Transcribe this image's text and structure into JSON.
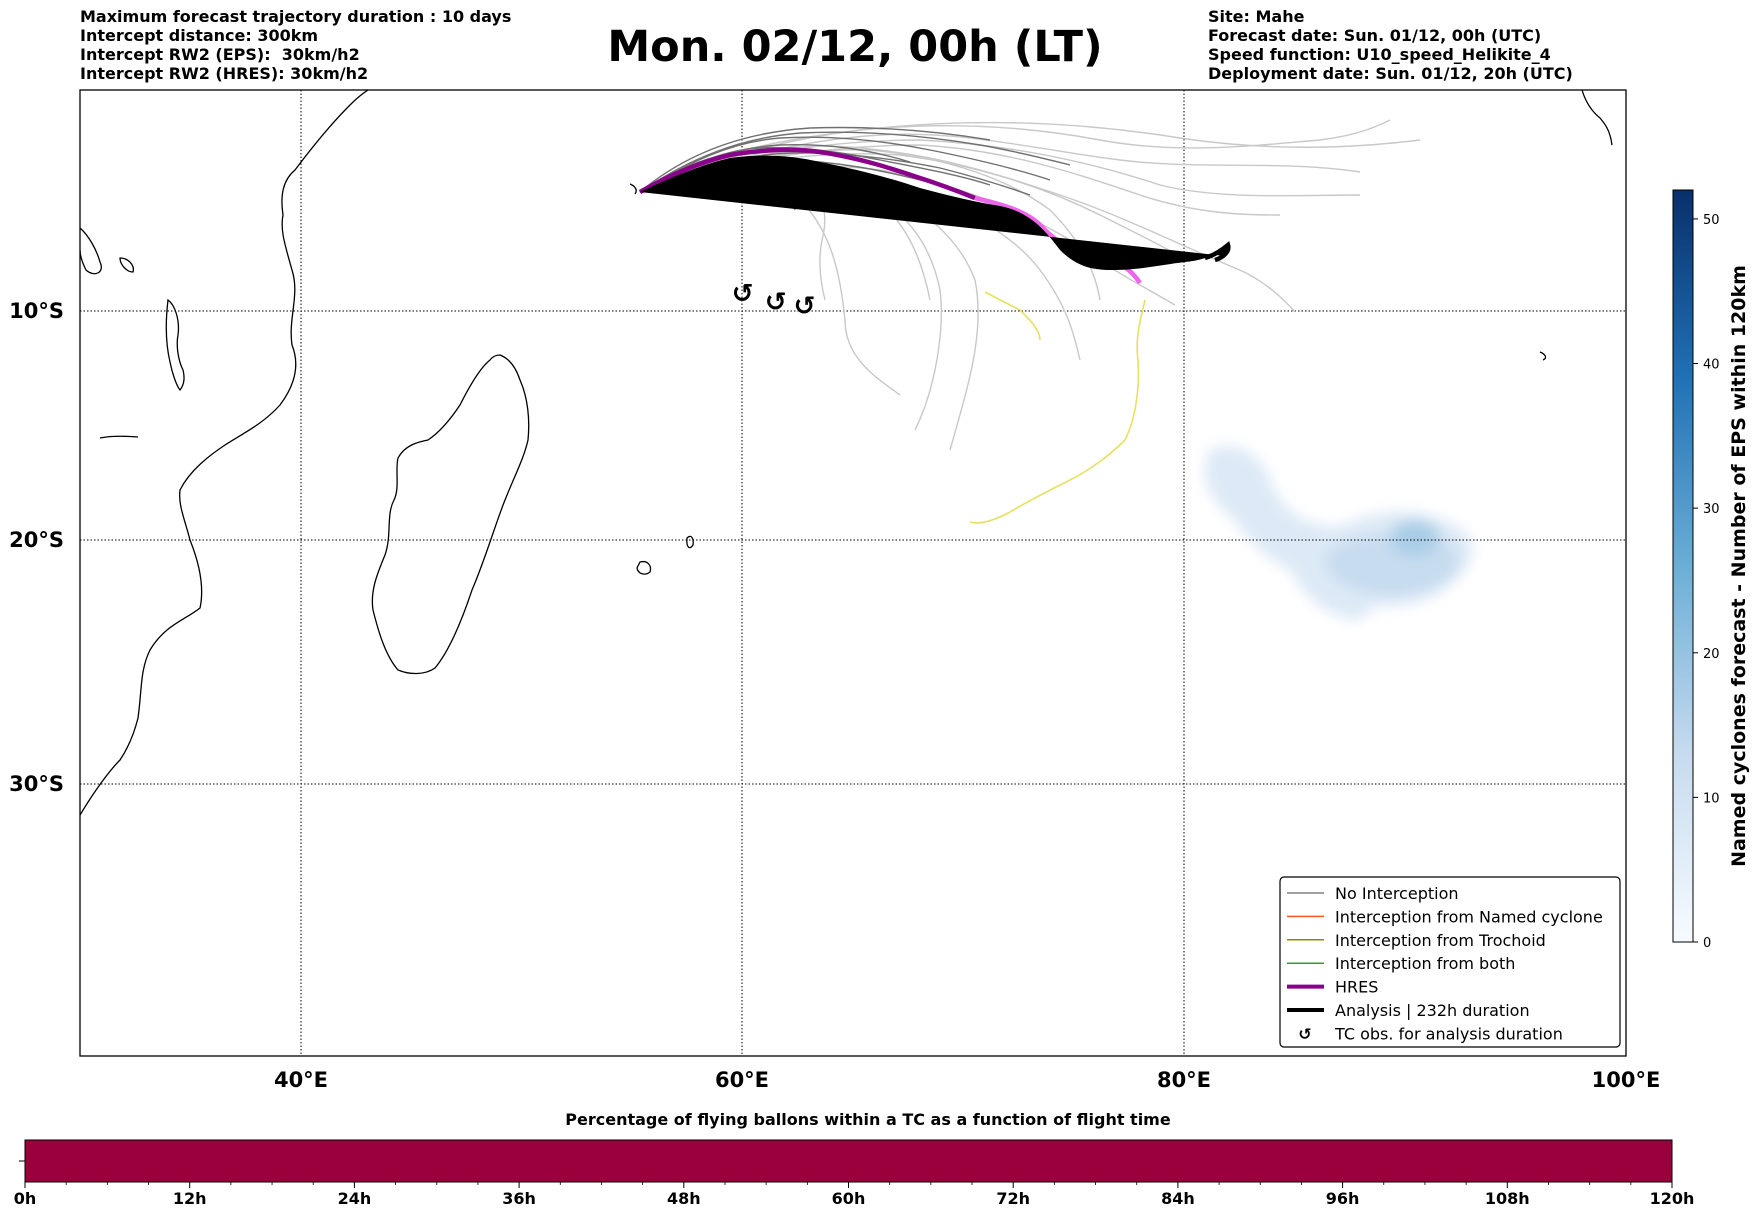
{
  "header": {
    "left_lines": [
      "Maximum forecast trajectory duration : 10 days",
      "Intercept distance: 300km",
      "Intercept RW2 (EPS):  30km/h2",
      "Intercept RW2 (HRES): 30km/h2"
    ],
    "right_lines": [
      "Site: Mahe",
      "Forecast date: Sun. 01/12, 00h (UTC)",
      "Speed function: U10_speed_Helikite_4",
      "Deployment date: Sun. 01/12, 20h (UTC)"
    ],
    "title": "Mon. 02/12, 00h (LT)"
  },
  "map": {
    "lon_range": [
      30,
      100
    ],
    "lat_range": [
      -43,
      -1
    ],
    "lon_ticks": [
      "40°E",
      "60°E",
      "80°E",
      "100°E"
    ],
    "lat_ticks": [
      "10°S",
      "20°S",
      "30°S"
    ],
    "gridlines": true,
    "colors": {
      "no_interception": "#808080",
      "named_cyclone": "#ff5522",
      "trochoid": "#8b8b00",
      "both": "#2ca02c",
      "hres": "#8b008b",
      "hres_tail": "#ee66ee",
      "analysis": "#000000",
      "yellow_track": "#e8e060",
      "light_track": "#c8c8c8"
    },
    "tc_obs_symbol": "↺",
    "tc_obs_points": [
      [
        60.0,
        -10.8
      ],
      [
        61.5,
        -11.2
      ],
      [
        62.8,
        -11.4
      ]
    ]
  },
  "legend": {
    "position": "lower-right",
    "items": [
      {
        "label": "No Interception",
        "key": "no_interception",
        "style": "line-thin"
      },
      {
        "label": "Interception from Named cyclone",
        "key": "named_cyclone",
        "style": "line-thin"
      },
      {
        "label": "Interception from Trochoid",
        "key": "trochoid",
        "style": "line-thin"
      },
      {
        "label": "Interception from both",
        "key": "both",
        "style": "line-thin"
      },
      {
        "label": "HRES",
        "key": "hres",
        "style": "line-thick"
      },
      {
        "label": "Analysis | 232h duration",
        "key": "analysis",
        "style": "line-thick"
      },
      {
        "label": "TC obs. for analysis duration",
        "key": "analysis",
        "style": "symbol"
      }
    ]
  },
  "colorbar_right": {
    "label": "Named cyclones forecast - Number of EPS within 120km",
    "ticks": [
      0,
      10,
      20,
      30,
      40,
      50
    ],
    "range": [
      0,
      52
    ],
    "cmap": "Blues"
  },
  "colorbar_bottom": {
    "title": "Percentage of flying ballons within a TC as a function of flight time",
    "ticks": [
      "0h",
      "12h",
      "24h",
      "36h",
      "48h",
      "60h",
      "72h",
      "84h",
      "96h",
      "108h",
      "120h"
    ],
    "color": "#9b003c"
  }
}
